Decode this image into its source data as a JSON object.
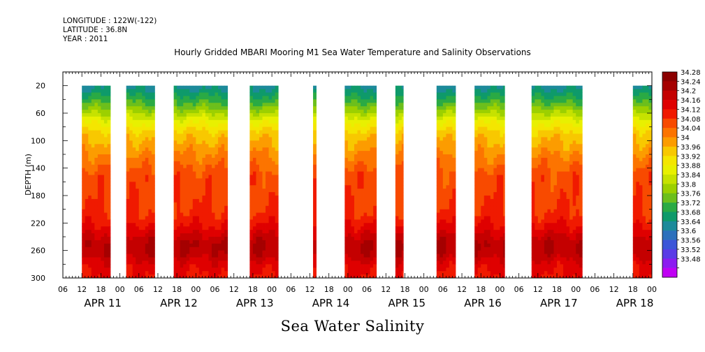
{
  "header": {
    "longitude": "LONGITUDE : 122W(-122)",
    "latitude": "LATITUDE : 36.8N",
    "year": "YEAR : 2011"
  },
  "chart_data": {
    "type": "heatmap",
    "title": "Hourly Gridded MBARI Mooring M1 Sea Water Temperature and Salinity Observations",
    "xlabel": "Sea Water Salinity",
    "ylabel": "DEPTH (m)",
    "x_axis": {
      "unit": "hours",
      "range": [
        0,
        186
      ],
      "hour_ticks": [
        "06",
        "12",
        "18",
        "00",
        "06",
        "12",
        "18",
        "00",
        "06",
        "12",
        "18",
        "00",
        "06",
        "12",
        "18",
        "00",
        "06",
        "12",
        "18",
        "00",
        "06",
        "12",
        "18",
        "00",
        "06",
        "12",
        "18",
        "00",
        "06",
        "12",
        "18",
        "00"
      ],
      "day_labels": [
        "APR 11",
        "APR 12",
        "APR 13",
        "APR 14",
        "APR 15",
        "APR 16",
        "APR 17",
        "APR 18"
      ]
    },
    "y_axis": {
      "range": [
        0,
        300
      ],
      "inverted": true,
      "ticks": [
        20,
        60,
        100,
        140,
        180,
        220,
        260,
        300
      ]
    },
    "colorbar": {
      "levels": [
        34.28,
        34.24,
        34.2,
        34.16,
        34.12,
        34.08,
        34.04,
        34,
        33.96,
        33.92,
        33.88,
        33.84,
        33.8,
        33.76,
        33.72,
        33.68,
        33.64,
        33.6,
        33.56,
        33.52,
        33.48
      ],
      "colors": [
        "#8b0000",
        "#a50000",
        "#c40000",
        "#df0000",
        "#f01a00",
        "#f84a00",
        "#fc7400",
        "#fc9c00",
        "#f8c800",
        "#f4e600",
        "#e8f000",
        "#c6e200",
        "#9cd000",
        "#6cbf1c",
        "#2aaa44",
        "#0e9a6a",
        "#1c8a9a",
        "#2c70bc",
        "#3c56d8",
        "#5a3ce6",
        "#8c1cf0",
        "#c000f4"
      ]
    },
    "segments": [
      {
        "start": 6,
        "end": 15
      },
      {
        "start": 20,
        "end": 29
      },
      {
        "start": 35,
        "end": 52
      },
      {
        "start": 59,
        "end": 68
      },
      {
        "start": 79,
        "end": 80
      },
      {
        "start": 89,
        "end": 99
      },
      {
        "start": 105,
        "end": 107.5
      },
      {
        "start": 118,
        "end": 124
      },
      {
        "start": 130,
        "end": 139.5
      },
      {
        "start": 148,
        "end": 164
      },
      {
        "start": 180,
        "end": 186
      }
    ],
    "profile": [
      {
        "depth": 20,
        "value": 33.66
      },
      {
        "depth": 30,
        "value": 33.7
      },
      {
        "depth": 45,
        "value": 33.76
      },
      {
        "depth": 60,
        "value": 33.84
      },
      {
        "depth": 75,
        "value": 33.92
      },
      {
        "depth": 90,
        "value": 33.98
      },
      {
        "depth": 110,
        "value": 34.02
      },
      {
        "depth": 130,
        "value": 34.06
      },
      {
        "depth": 150,
        "value": 34.1
      },
      {
        "depth": 180,
        "value": 34.11
      },
      {
        "depth": 210,
        "value": 34.13
      },
      {
        "depth": 230,
        "value": 34.18
      },
      {
        "depth": 250,
        "value": 34.24
      },
      {
        "depth": 265,
        "value": 34.23
      },
      {
        "depth": 280,
        "value": 34.18
      },
      {
        "depth": 300,
        "value": 34.15
      }
    ]
  }
}
